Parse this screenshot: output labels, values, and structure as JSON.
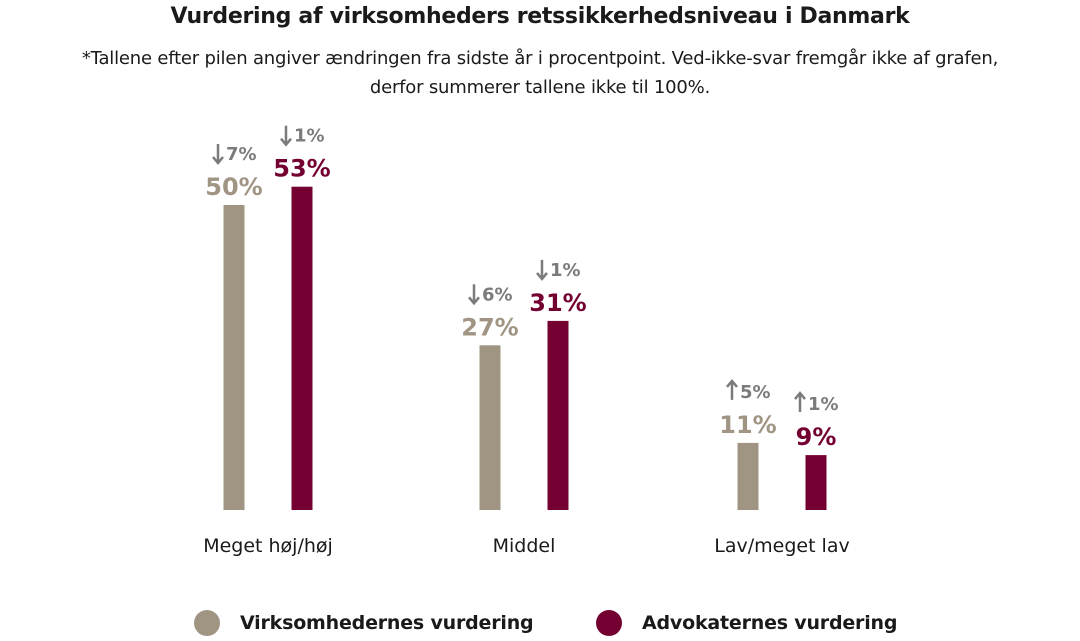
{
  "chart_data": {
    "type": "bar",
    "title": "Vurdering af virksomheders retssikkerhedsniveau i Danmark",
    "subtitle": "*Tallene efter pilen angiver ændringen fra sidste år i procentpoint. Ved-ikke-svar fremgår ikke af grafen, derfor summerer tallene ikke til 100%.",
    "categories": [
      "Meget høj/høj",
      "Middel",
      "Lav/meget lav"
    ],
    "series": [
      {
        "name": "Virksomhedernes vurdering",
        "color": "#a09483",
        "values": [
          50,
          27,
          11
        ],
        "value_labels": [
          "50%",
          "27%",
          "11%"
        ],
        "change_labels": [
          "7%",
          "6%",
          "5%"
        ],
        "change_direction": [
          "down",
          "down",
          "up"
        ]
      },
      {
        "name": "Advokaternes vurdering",
        "color": "#740032",
        "values": [
          53,
          31,
          9
        ],
        "value_labels": [
          "53%",
          "31%",
          "9%"
        ],
        "change_labels": [
          "1%",
          "1%",
          "1%"
        ],
        "change_direction": [
          "down",
          "down",
          "up"
        ]
      }
    ],
    "change_label_color": "#7b7b7b",
    "ylim": [
      0,
      55
    ],
    "grid": false,
    "legend_position": "bottom"
  }
}
